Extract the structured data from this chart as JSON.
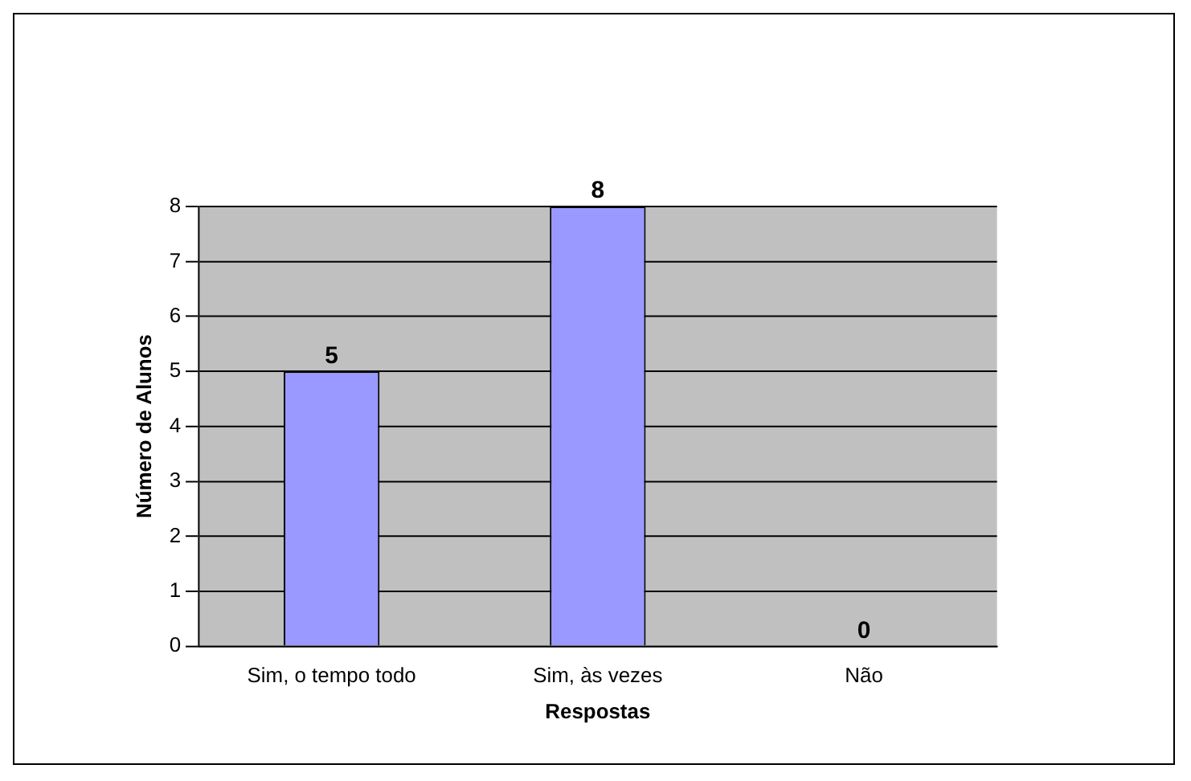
{
  "chart_data": {
    "type": "bar",
    "xlabel": "Respostas",
    "ylabel": "Número de Alunos",
    "categories": [
      "Sim, o tempo todo",
      "Sim, às vezes",
      "Não"
    ],
    "values": [
      5,
      8,
      0
    ],
    "color": "#9999ff",
    "ylim": [
      0,
      8
    ],
    "yticks": [
      0,
      1,
      2,
      3,
      4,
      5,
      6,
      7,
      8
    ],
    "grid": "y",
    "data_labels": true,
    "legend": false
  }
}
